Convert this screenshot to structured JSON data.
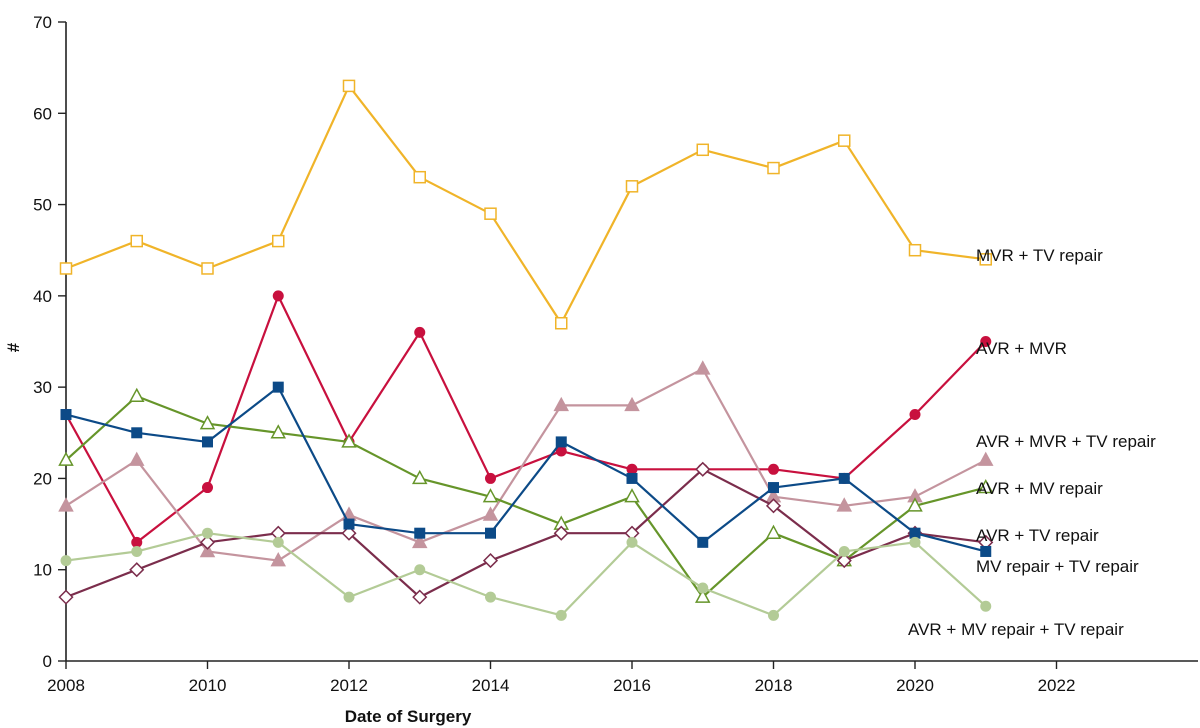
{
  "chart_data": {
    "type": "line",
    "title": "",
    "xlabel": "Date of Surgery",
    "ylabel": "#",
    "xlim": [
      2008,
      2024
    ],
    "ylim": [
      0,
      70
    ],
    "x_ticks": [
      2008,
      2010,
      2012,
      2014,
      2016,
      2018,
      2020,
      2022
    ],
    "y_ticks": [
      0,
      10,
      20,
      30,
      40,
      50,
      60,
      70
    ],
    "grid": false,
    "legend": "direct labels at right end of each series",
    "x": [
      2008,
      2009,
      2010,
      2011,
      2012,
      2013,
      2014,
      2015,
      2016,
      2017,
      2018,
      2019,
      2020,
      2021
    ],
    "series": [
      {
        "name": "MVR + TV repair",
        "color": "#f0b429",
        "marker": "square-open",
        "values": [
          43,
          46,
          43,
          46,
          63,
          53,
          49,
          37,
          52,
          56,
          54,
          57,
          45,
          44
        ]
      },
      {
        "name": "AVR + MVR",
        "color": "#c8103e",
        "marker": "circle-filled",
        "values": [
          27,
          13,
          19,
          40,
          24,
          36,
          20,
          23,
          21,
          21,
          21,
          20,
          27,
          35
        ]
      },
      {
        "name": "AVR + MVR + TV repair",
        "color": "#c4949e",
        "marker": "triangle-filled",
        "values": [
          17,
          22,
          12,
          11,
          16,
          13,
          16,
          28,
          28,
          32,
          18,
          17,
          18,
          22
        ]
      },
      {
        "name": "AVR + MV repair",
        "color": "#66952a",
        "marker": "triangle-open",
        "values": [
          22,
          29,
          26,
          25,
          24,
          20,
          18,
          15,
          18,
          7,
          14,
          11,
          17,
          19
        ]
      },
      {
        "name": "AVR + TV repair",
        "color": "#7b2d4c",
        "marker": "diamond-open",
        "values": [
          7,
          10,
          13,
          14,
          14,
          7,
          11,
          14,
          14,
          21,
          17,
          11,
          14,
          13
        ]
      },
      {
        "name": "MV repair + TV repair",
        "color": "#0c4a87",
        "marker": "square-filled",
        "values": [
          27,
          25,
          24,
          30,
          15,
          14,
          14,
          24,
          20,
          13,
          19,
          20,
          14,
          12
        ]
      },
      {
        "name": "AVR + MV repair + TV repair",
        "color": "#b3cb96",
        "marker": "circle-filled",
        "values": [
          11,
          12,
          14,
          13,
          7,
          10,
          7,
          5,
          13,
          8,
          5,
          12,
          13,
          6
        ]
      }
    ]
  }
}
